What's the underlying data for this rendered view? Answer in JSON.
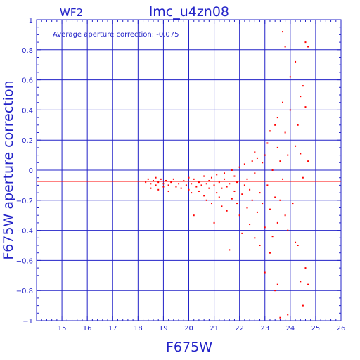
{
  "header": {
    "chip": "WF2",
    "title": "lmc_u4zn08"
  },
  "annotation": "Average aperture correction:  -0.075",
  "chart_data": {
    "type": "scatter",
    "title": "lmc_u4zn08",
    "xlabel": "F675W",
    "ylabel": "F675W  aperture  correction",
    "xlim": [
      14,
      26
    ],
    "ylim": [
      -1,
      1
    ],
    "xticks": [
      15,
      16,
      17,
      18,
      19,
      20,
      21,
      22,
      23,
      24,
      25,
      26
    ],
    "yticks": [
      -1,
      -0.8,
      -0.6,
      -0.4,
      -0.2,
      0,
      0.2,
      0.4,
      0.6,
      0.8,
      1
    ],
    "ytick_labels": [
      "−1",
      "−0.8",
      "−0.6",
      "−0.4",
      "−0.2",
      "0",
      "0.2",
      "0.4",
      "0.6",
      "0.8",
      "1"
    ],
    "grid": true,
    "reference_line": {
      "y": -0.075,
      "color": "#ff0000"
    },
    "colors": {
      "axes": "#2323c8",
      "points": "#ff0000",
      "line": "#ff0000"
    },
    "series": [
      {
        "points": [
          [
            18.3,
            -0.08
          ],
          [
            18.4,
            -0.06
          ],
          [
            18.5,
            -0.09
          ],
          [
            18.5,
            -0.12
          ],
          [
            18.6,
            -0.07
          ],
          [
            18.7,
            -0.05
          ],
          [
            18.7,
            -0.1
          ],
          [
            18.8,
            -0.08
          ],
          [
            18.8,
            -0.13
          ],
          [
            18.9,
            -0.06
          ],
          [
            19.0,
            -0.09
          ],
          [
            19.0,
            -0.11
          ],
          [
            19.1,
            -0.07
          ],
          [
            19.2,
            -0.1
          ],
          [
            19.2,
            -0.14
          ],
          [
            19.3,
            -0.08
          ],
          [
            19.4,
            -0.06
          ],
          [
            19.5,
            -0.11
          ],
          [
            19.6,
            -0.09
          ],
          [
            19.7,
            -0.12
          ],
          [
            19.8,
            -0.07
          ],
          [
            19.9,
            -0.1
          ],
          [
            20.0,
            -0.05
          ],
          [
            20.0,
            -0.13
          ],
          [
            20.1,
            -0.09
          ],
          [
            20.1,
            -0.15
          ],
          [
            20.2,
            -0.06
          ],
          [
            20.2,
            -0.3
          ],
          [
            20.3,
            -0.11
          ],
          [
            20.4,
            -0.08
          ],
          [
            20.4,
            -0.14
          ],
          [
            20.5,
            -0.1
          ],
          [
            20.6,
            -0.04
          ],
          [
            20.6,
            -0.17
          ],
          [
            20.7,
            -0.09
          ],
          [
            20.7,
            -0.2
          ],
          [
            20.8,
            -0.07
          ],
          [
            20.8,
            -0.12
          ],
          [
            20.9,
            -0.22
          ],
          [
            20.9,
            -0.05
          ],
          [
            21.0,
            -0.35
          ],
          [
            21.0,
            -0.1
          ],
          [
            21.1,
            -0.03
          ],
          [
            21.1,
            -0.15
          ],
          [
            21.2,
            -0.08
          ],
          [
            21.2,
            -0.18
          ],
          [
            21.3,
            -0.12
          ],
          [
            21.3,
            -0.24
          ],
          [
            21.4,
            -0.06
          ],
          [
            21.4,
            -0.02
          ],
          [
            21.5,
            -0.27
          ],
          [
            21.5,
            -0.11
          ],
          [
            21.6,
            -0.53
          ],
          [
            21.6,
            -0.09
          ],
          [
            21.7,
            0.0
          ],
          [
            21.7,
            -0.19
          ],
          [
            21.8,
            -0.14
          ],
          [
            21.8,
            -0.04
          ],
          [
            21.9,
            -0.22
          ],
          [
            21.9,
            -0.08
          ],
          [
            22.0,
            -0.3
          ],
          [
            22.0,
            0.02
          ],
          [
            22.1,
            -0.16
          ],
          [
            22.1,
            -0.42
          ],
          [
            22.2,
            -0.1
          ],
          [
            22.2,
            0.04
          ],
          [
            22.3,
            -0.25
          ],
          [
            22.3,
            -0.06
          ],
          [
            22.4,
            -0.36
          ],
          [
            22.4,
            -0.13
          ],
          [
            22.5,
            0.06
          ],
          [
            22.5,
            -0.2
          ],
          [
            22.6,
            -0.45
          ],
          [
            22.6,
            -0.02
          ],
          [
            22.7,
            -0.28
          ],
          [
            22.7,
            0.08
          ],
          [
            22.8,
            -0.15
          ],
          [
            22.8,
            -0.5
          ],
          [
            22.9,
            0.05
          ],
          [
            22.9,
            -0.22
          ],
          [
            23.0,
            -0.38
          ],
          [
            23.0,
            0.1
          ],
          [
            23.0,
            -0.68
          ],
          [
            23.1,
            -0.1
          ],
          [
            23.1,
            0.18
          ],
          [
            23.2,
            -0.26
          ],
          [
            23.2,
            -0.55
          ],
          [
            23.2,
            0.26
          ],
          [
            23.3,
            -0.44
          ],
          [
            23.3,
            0.0
          ],
          [
            23.4,
            -0.8
          ],
          [
            23.4,
            0.3
          ],
          [
            23.4,
            -0.18
          ],
          [
            23.5,
            0.15
          ],
          [
            23.5,
            -0.35
          ],
          [
            23.5,
            0.35
          ],
          [
            23.6,
            -0.2
          ],
          [
            23.6,
            0.06
          ],
          [
            23.6,
            -0.98
          ],
          [
            23.7,
            0.92
          ],
          [
            23.7,
            0.45
          ],
          [
            23.7,
            -0.06
          ],
          [
            23.8,
            0.82
          ],
          [
            23.8,
            -0.3
          ],
          [
            23.8,
            0.25
          ],
          [
            23.9,
            0.1
          ],
          [
            23.9,
            -0.4
          ],
          [
            23.9,
            -0.96
          ],
          [
            24.0,
            0.62
          ],
          [
            24.0,
            0.4
          ],
          [
            24.1,
            -0.22
          ],
          [
            24.2,
            0.16
          ],
          [
            24.2,
            -0.48
          ],
          [
            24.2,
            0.72
          ],
          [
            24.3,
            -0.5
          ],
          [
            24.3,
            0.3
          ],
          [
            24.4,
            0.49
          ],
          [
            24.4,
            -0.74
          ],
          [
            24.4,
            0.11
          ],
          [
            24.5,
            0.56
          ],
          [
            24.5,
            -0.05
          ],
          [
            24.6,
            0.42
          ],
          [
            24.6,
            -0.65
          ],
          [
            24.6,
            0.85
          ],
          [
            24.7,
            0.82
          ],
          [
            24.7,
            0.06
          ],
          [
            24.7,
            -0.76
          ],
          [
            24.5,
            -0.9
          ],
          [
            23.5,
            -0.76
          ],
          [
            22.6,
            0.12
          ]
        ]
      }
    ]
  }
}
